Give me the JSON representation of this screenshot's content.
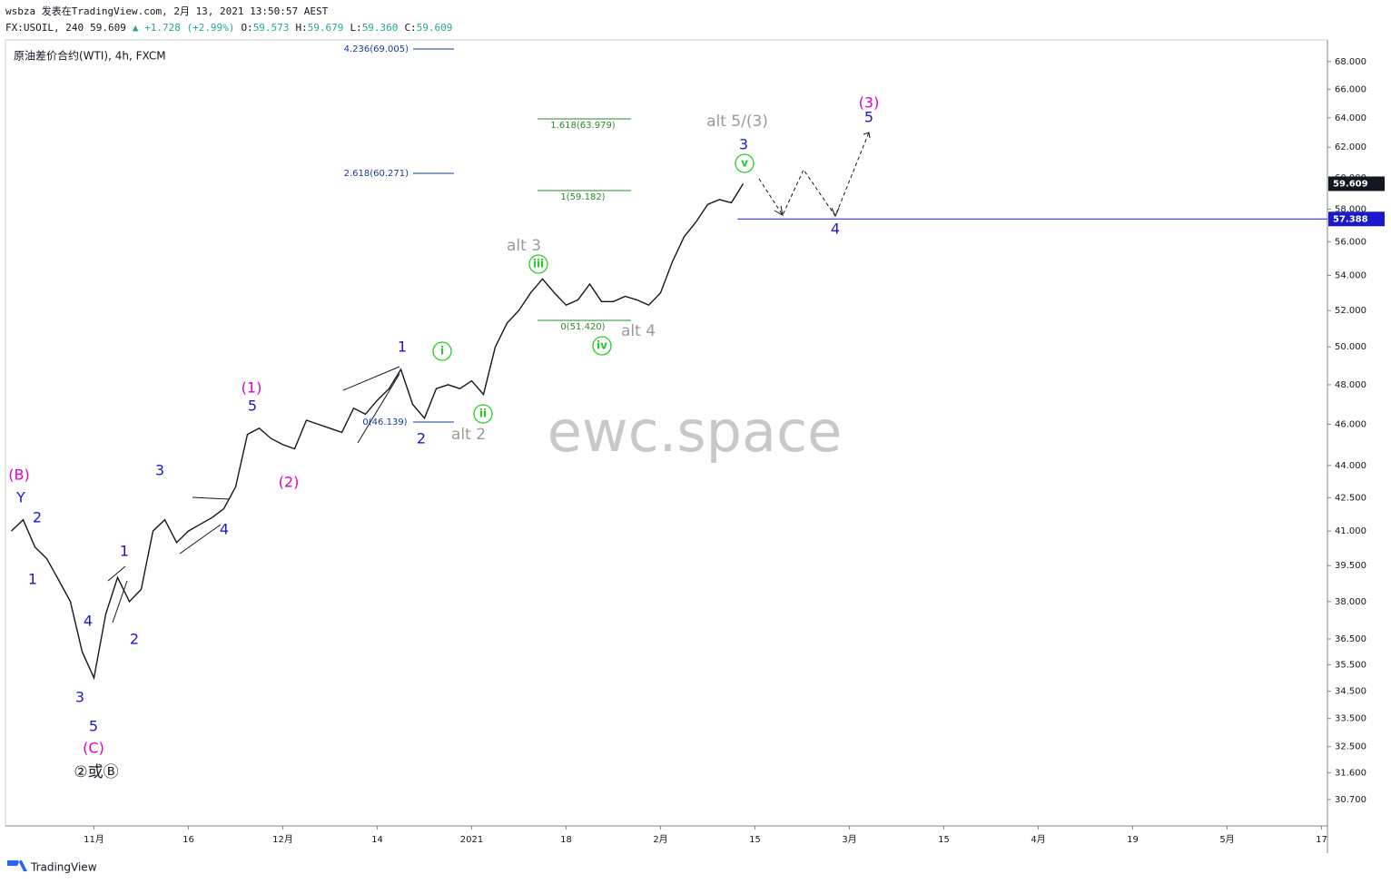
{
  "header": {
    "author_line": "wsbza 发表在TradingView.com, 2月 13, 2021 13:50:57 AEST",
    "symbol": "FX:USOIL, 240",
    "price": "59.609",
    "change": "▲ +1.728 (+2.99%)",
    "ohlc": [
      {
        "label": "O:",
        "value": "59.573"
      },
      {
        "label": "H:",
        "value": "59.679"
      },
      {
        "label": "L:",
        "value": "59.360"
      },
      {
        "label": "C:",
        "value": "59.609"
      }
    ]
  },
  "legend": "原油差价合约(WTI), 4h, FXCM",
  "watermark": "ewc.space",
  "footer": "TradingView",
  "fib_labels": [
    "4.236(69.005)",
    "2.618(60.271)",
    "1.618(63.979)",
    "1(59.182)",
    "0(51.420)",
    "0(46.139)"
  ],
  "wave_labels": [
    "(B)",
    "Y",
    "2",
    "1",
    "4",
    "3",
    "5",
    "(C)",
    "②或Ⓑ",
    "1",
    "2",
    "3",
    "4",
    "(1)",
    "5",
    "(2)",
    "1",
    "2",
    "i",
    "ii",
    "alt 2",
    "alt 3",
    "iii",
    "iv",
    "alt 4",
    "alt 5/(3)",
    "3",
    "v",
    "(3)",
    "5",
    "4"
  ],
  "chart_data": {
    "type": "line",
    "log_scale": true,
    "grid": false,
    "categories": [
      null,
      null,
      null,
      null,
      null,
      null,
      null,
      "11月",
      null,
      null,
      null,
      null,
      null,
      null,
      null,
      "16",
      null,
      null,
      null,
      null,
      null,
      null,
      null,
      "12月",
      null,
      null,
      null,
      null,
      null,
      null,
      null,
      "14",
      null,
      null,
      null,
      null,
      null,
      null,
      null,
      "2021",
      null,
      null,
      null,
      null,
      null,
      null,
      null,
      "18",
      null,
      null,
      null,
      null,
      null,
      null,
      null,
      "2月",
      null,
      null,
      null,
      null,
      null,
      null,
      null,
      "15",
      null,
      null,
      null,
      null,
      null,
      null,
      null,
      "3月",
      null,
      null,
      null,
      null,
      null,
      null,
      null,
      "15",
      null,
      null,
      null,
      null,
      null,
      null,
      null,
      "4月",
      null,
      null,
      null,
      null,
      null,
      null,
      null,
      "19",
      null,
      null,
      null,
      null,
      null,
      null,
      null,
      "5月",
      null,
      null,
      null,
      null,
      null,
      null,
      null,
      "17"
    ],
    "series": [
      {
        "name": "USOIL",
        "color": "#131722",
        "values": [
          41.0,
          41.5,
          40.3,
          39.8,
          38.9,
          38.0,
          36.0,
          35.0,
          37.5,
          39.0,
          38.0,
          38.5,
          41.0,
          41.5,
          40.5,
          41.0,
          41.3,
          41.6,
          42.0,
          43.0,
          45.5,
          45.8,
          45.3,
          45.0,
          44.8,
          46.2,
          46.0,
          45.8,
          45.6,
          46.8,
          46.5,
          47.2,
          47.8,
          48.8,
          47.0,
          46.3,
          47.8,
          48.0,
          47.8,
          48.2,
          47.5,
          50.0,
          51.3,
          52.0,
          53.0,
          53.8,
          53.0,
          52.3,
          52.6,
          53.5,
          52.5,
          52.5,
          52.8,
          52.6,
          52.3,
          53.0,
          54.8,
          56.3,
          57.2,
          58.3,
          58.6,
          58.4,
          59.609,
          null,
          null,
          null,
          null,
          null,
          null,
          null,
          null,
          null,
          null,
          null,
          null,
          null,
          null,
          null,
          null,
          null,
          null,
          null,
          null,
          null,
          null,
          null,
          null,
          null,
          null,
          null,
          null,
          null,
          null,
          null,
          null,
          null,
          null,
          null,
          null,
          null,
          null,
          null,
          null,
          null,
          null,
          null,
          null,
          null,
          null,
          null,
          null,
          null
        ]
      }
    ],
    "hline": {
      "value": 57.388,
      "color": "#1a1acc"
    },
    "ylim": [
      29.84,
      69.6
    ],
    "yticks": [
      {
        "value": 68,
        "label": "68.000"
      },
      {
        "value": 66,
        "label": "66.000"
      },
      {
        "value": 64,
        "label": "64.000"
      },
      {
        "value": 62,
        "label": "62.000"
      },
      {
        "value": 60,
        "label": "60.000"
      },
      {
        "value": 58,
        "label": "58.000"
      },
      {
        "value": 56,
        "label": "56.000"
      },
      {
        "value": 54,
        "label": "54.000"
      },
      {
        "value": 52,
        "label": "52.000"
      },
      {
        "value": 50,
        "label": "50.000"
      },
      {
        "value": 48,
        "label": "48.000"
      },
      {
        "value": 46,
        "label": "46.000"
      },
      {
        "value": 44,
        "label": "44.000"
      },
      {
        "value": 42.5,
        "label": "42.500"
      },
      {
        "value": 41,
        "label": "41.000"
      },
      {
        "value": 39.5,
        "label": "39.500"
      },
      {
        "value": 38,
        "label": "38.000"
      },
      {
        "value": 36.5,
        "label": "36.500"
      },
      {
        "value": 35.5,
        "label": "35.500"
      },
      {
        "value": 34.5,
        "label": "34.500"
      },
      {
        "value": 33.5,
        "label": "33.500"
      },
      {
        "value": 32.5,
        "label": "32.500"
      },
      {
        "value": 31.6,
        "label": "31.600"
      },
      {
        "value": 30.7,
        "label": "30.700"
      }
    ]
  }
}
